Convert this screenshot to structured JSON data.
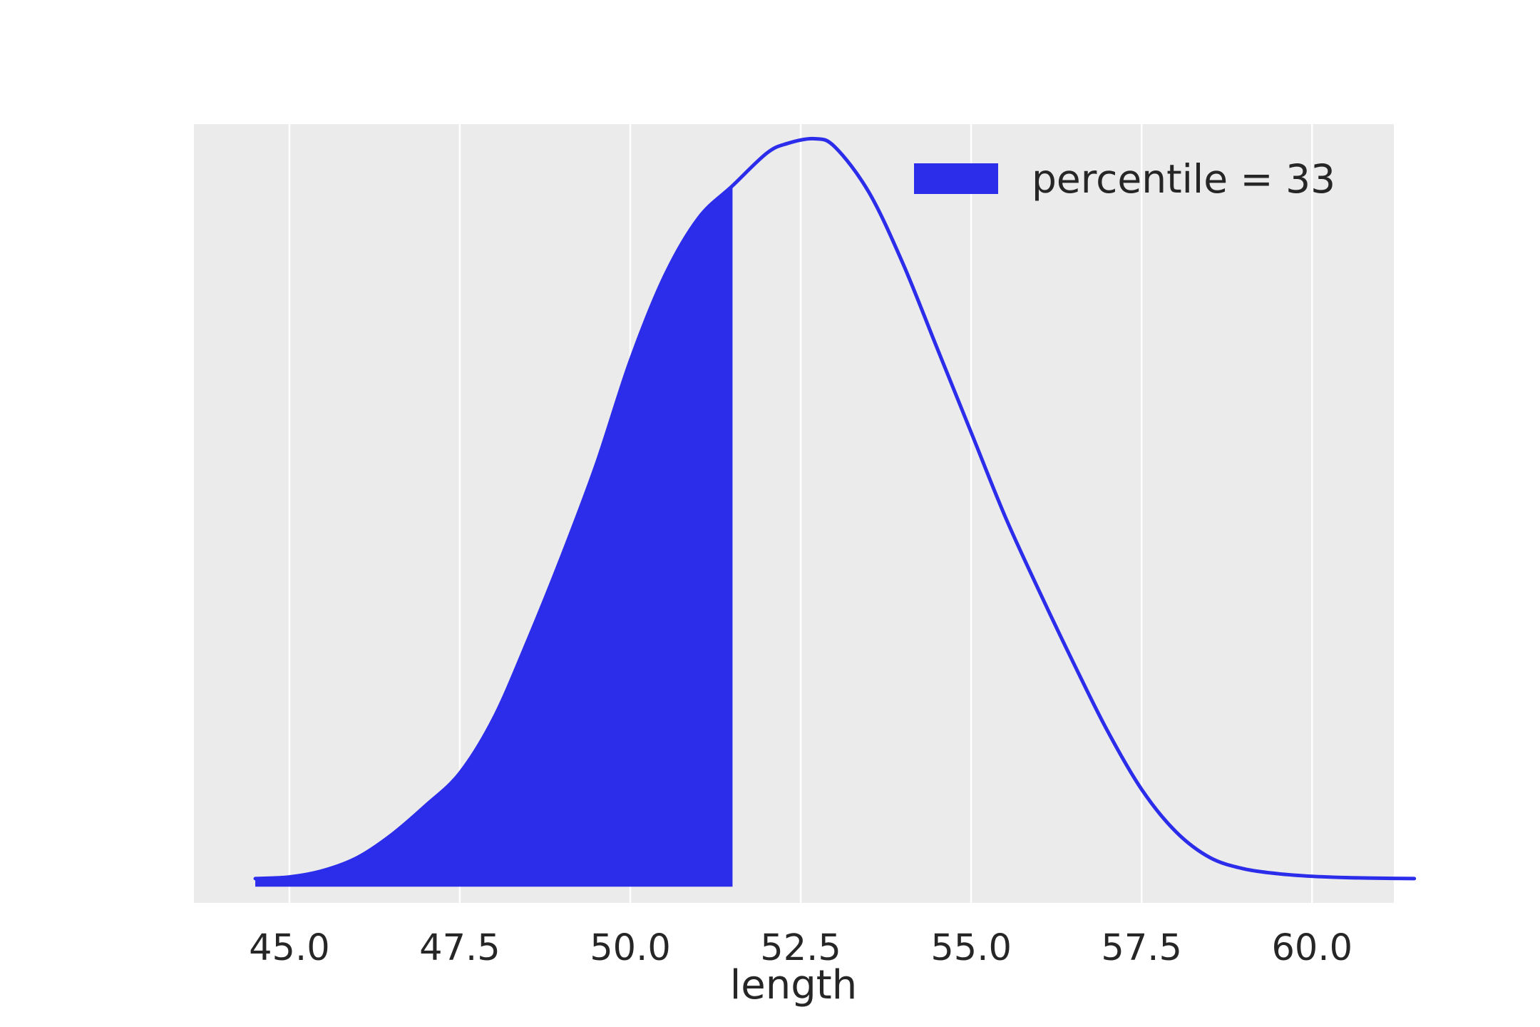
{
  "chart_data": {
    "type": "area",
    "title": "",
    "xlabel": "length",
    "ylabel": "",
    "xlim": [
      43.6,
      61.2
    ],
    "ylim": [
      -0.005,
      0.235
    ],
    "grid": "x-only",
    "background": "#ebebeb",
    "line_color": "#2c2ceb",
    "fill_color": "#2c2ceb",
    "legend_position": "top-right",
    "x_ticks": [
      45.0,
      47.5,
      50.0,
      52.5,
      55.0,
      57.5,
      60.0
    ],
    "x_tick_labels": [
      "45.0",
      "47.5",
      "50.0",
      "52.5",
      "55.0",
      "57.5",
      "60.0"
    ],
    "shade_to_x": 51.5,
    "series": [
      {
        "name": "percentile = 33",
        "x": [
          44.5,
          45.0,
          45.5,
          46.0,
          46.5,
          47.0,
          47.5,
          48.0,
          48.5,
          49.0,
          49.5,
          50.0,
          50.5,
          51.0,
          51.5,
          52.0,
          52.3,
          52.7,
          53.0,
          53.5,
          54.0,
          54.5,
          55.0,
          55.5,
          56.0,
          56.5,
          57.0,
          57.5,
          58.0,
          58.5,
          59.0,
          59.5,
          60.0,
          60.5,
          61.0,
          61.5
        ],
        "y": [
          0.0025,
          0.003,
          0.005,
          0.009,
          0.016,
          0.025,
          0.035,
          0.052,
          0.076,
          0.102,
          0.13,
          0.162,
          0.188,
          0.206,
          0.216,
          0.226,
          0.229,
          0.2305,
          0.228,
          0.214,
          0.192,
          0.166,
          0.14,
          0.114,
          0.091,
          0.069,
          0.048,
          0.03,
          0.017,
          0.009,
          0.0055,
          0.004,
          0.0032,
          0.0028,
          0.0026,
          0.0025
        ]
      }
    ]
  }
}
